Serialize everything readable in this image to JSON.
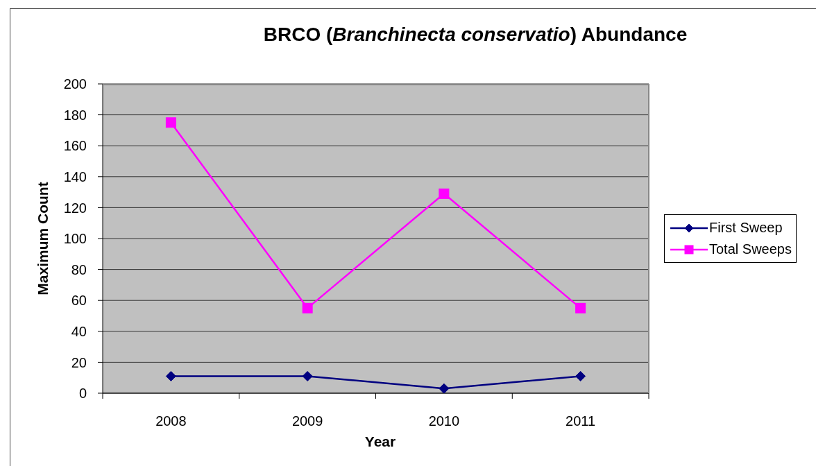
{
  "chart_data": {
    "type": "line",
    "title": "BRCO (Branchinecta conservatio) Abundance",
    "xlabel": "Year",
    "ylabel": "Maximum Count",
    "categories": [
      "2008",
      "2009",
      "2010",
      "2011"
    ],
    "series": [
      {
        "name": "First Sweep",
        "color": "#000080",
        "marker": "diamond",
        "values": [
          11,
          11,
          3,
          11
        ]
      },
      {
        "name": "Total Sweeps",
        "color": "#ff00ff",
        "marker": "square",
        "values": [
          175,
          55,
          129,
          55
        ]
      }
    ],
    "ylim": [
      0,
      200
    ],
    "yticks": [
      0,
      20,
      40,
      60,
      80,
      100,
      120,
      140,
      160,
      180,
      200
    ],
    "grid": "y",
    "legend": "right",
    "line_style": "solid"
  }
}
